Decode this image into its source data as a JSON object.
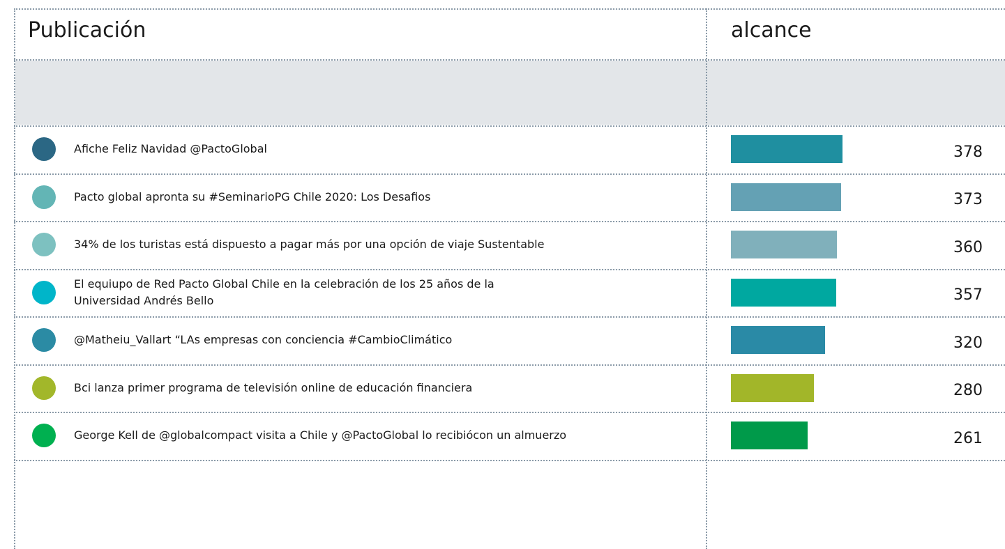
{
  "header": {
    "col1": "Publicación",
    "col2": "alcance"
  },
  "rows": [
    {
      "title": "Afiche Feliz Navidad  @PactoGlobal",
      "value": 378,
      "dot_color": "#2b6784",
      "bar_color": "#1f8fa0"
    },
    {
      "title": "Pacto global apronta su #SeminarioPG Chile 2020: Los Desafios",
      "value": 373,
      "dot_color": "#63b5b5",
      "bar_color": "#64a1b4"
    },
    {
      "title": "34% de los turistas está dispuesto  a pagar más por una opción de viaje Sustentable",
      "value": 360,
      "dot_color": "#7dc1c0",
      "bar_color": "#80b0bb"
    },
    {
      "title": "El equiupo de Red Pacto Global Chile en la celebración de los 25 años de la\nUniversidad Andrés Bello",
      "value": 357,
      "dot_color": "#00b5c9",
      "bar_color": "#00a8a0"
    },
    {
      "title": "@Matheiu_Vallart “LAs empresas con conciencia #CambioClimático",
      "value": 320,
      "dot_color": "#2b8ba4",
      "bar_color": "#2a8aa6"
    },
    {
      "title": "Bci lanza primer programa de televisión online de educación financiera",
      "value": 280,
      "dot_color": "#a2b72a",
      "bar_color": "#a2b629"
    },
    {
      "title": "George Kell de @globalcompact visita a Chile y @PactoGlobal lo recibiócon un almuerzo",
      "value": 261,
      "dot_color": "#00b050",
      "bar_color": "#009a4a"
    }
  ]
}
